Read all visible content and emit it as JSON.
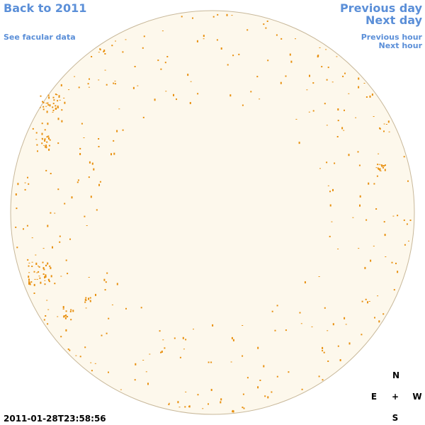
{
  "links": {
    "back": "Back to 2011",
    "facular": "See facular data",
    "previous_day": "Previous day",
    "next_day": "Next day",
    "previous_hour": "Previous hour",
    "next_hour": "Next hour"
  },
  "timestamp": "2011-01-28T23:58:56",
  "compass": {
    "north": "N",
    "east": "E",
    "center": "+",
    "west": "W",
    "south": "S"
  }
}
